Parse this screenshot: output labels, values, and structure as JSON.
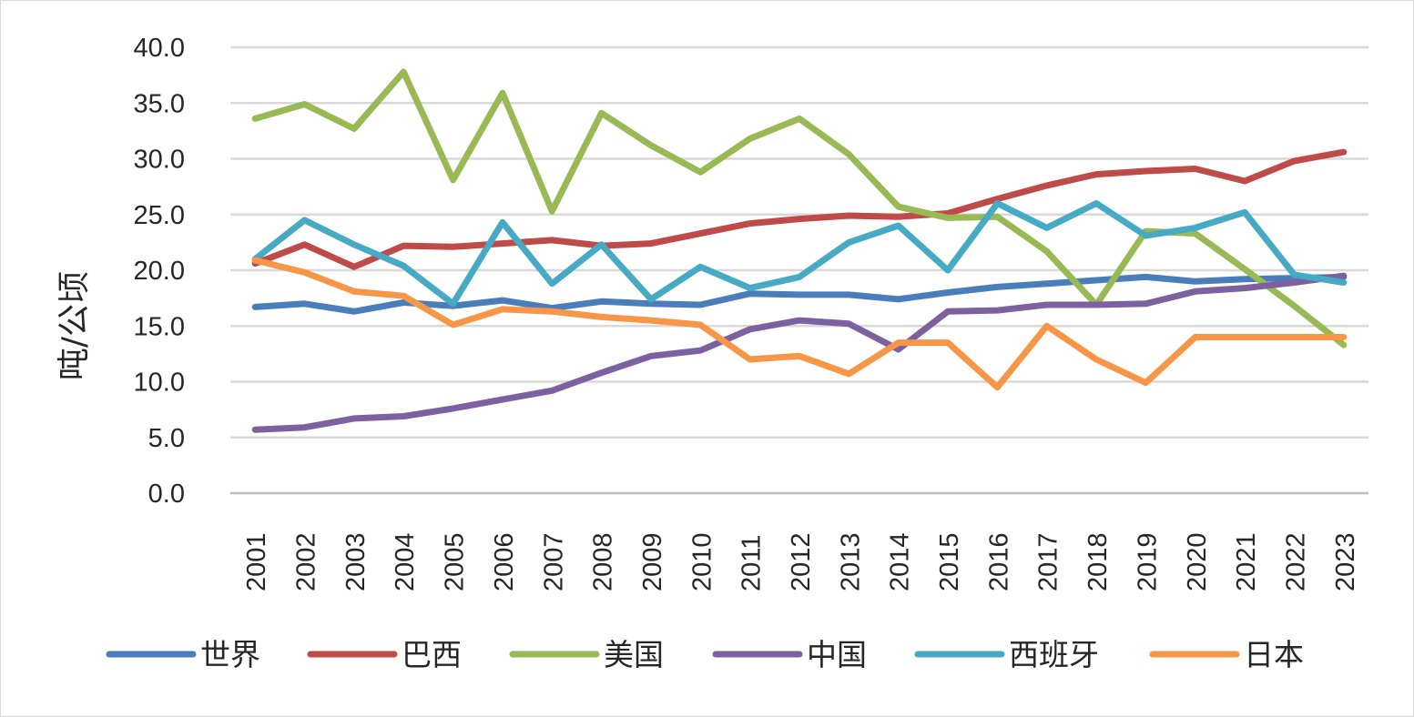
{
  "chart_data": {
    "type": "line",
    "title": "",
    "xlabel": "",
    "ylabel": "吨/公顷",
    "ylim": [
      0,
      40
    ],
    "ytick_labels": [
      "0.0",
      "5.0",
      "10.0",
      "15.0",
      "20.0",
      "25.0",
      "30.0",
      "35.0",
      "40.0"
    ],
    "grid": true,
    "legend_position": "bottom",
    "categories": [
      "2001",
      "2002",
      "2003",
      "2004",
      "2005",
      "2006",
      "2007",
      "2008",
      "2009",
      "2010",
      "2011",
      "2012",
      "2013",
      "2014",
      "2015",
      "2016",
      "2017",
      "2018",
      "2019",
      "2020",
      "2021",
      "2022",
      "2023"
    ],
    "series": [
      {
        "name": "世界",
        "color": "#4A7EBB",
        "values": [
          16.7,
          17.0,
          16.3,
          17.1,
          16.8,
          17.3,
          16.6,
          17.2,
          17.0,
          16.9,
          17.9,
          17.8,
          17.8,
          17.4,
          18.0,
          18.5,
          18.8,
          19.1,
          19.4,
          19.0,
          19.2,
          19.3,
          19.4
        ]
      },
      {
        "name": "巴西",
        "color": "#BE4B48",
        "values": [
          20.6,
          22.3,
          20.3,
          22.2,
          22.1,
          22.4,
          22.7,
          22.2,
          22.4,
          23.3,
          24.2,
          24.6,
          24.9,
          24.8,
          25.1,
          26.4,
          27.6,
          28.6,
          28.9,
          29.1,
          28.0,
          29.8,
          30.6
        ]
      },
      {
        "name": "美国",
        "color": "#98B954",
        "values": [
          33.6,
          34.9,
          32.7,
          37.8,
          28.1,
          35.9,
          25.3,
          34.1,
          31.2,
          28.8,
          31.8,
          33.6,
          30.4,
          25.7,
          24.7,
          24.8,
          21.7,
          16.9,
          23.5,
          23.3,
          20.1,
          16.8,
          13.3
        ]
      },
      {
        "name": "中国",
        "color": "#7D60A0",
        "values": [
          5.7,
          5.9,
          6.7,
          6.9,
          7.6,
          8.4,
          9.2,
          10.8,
          12.3,
          12.8,
          14.7,
          15.5,
          15.2,
          12.9,
          16.3,
          16.4,
          16.9,
          16.9,
          17.0,
          18.1,
          18.4,
          18.9,
          19.5
        ]
      },
      {
        "name": "西班牙",
        "color": "#46AAC5",
        "values": [
          21.0,
          24.5,
          22.3,
          20.4,
          17.0,
          24.3,
          18.8,
          22.3,
          17.4,
          20.3,
          18.4,
          19.4,
          22.5,
          24.0,
          20.0,
          26.0,
          23.8,
          26.0,
          23.1,
          23.8,
          25.2,
          19.6,
          18.9
        ]
      },
      {
        "name": "日本",
        "color": "#F79646",
        "values": [
          20.9,
          19.8,
          18.1,
          17.7,
          15.1,
          16.5,
          16.3,
          15.8,
          15.5,
          15.1,
          12.0,
          12.3,
          10.7,
          13.5,
          13.5,
          9.5,
          15.0,
          12.0,
          9.9,
          14.0,
          14.0,
          14.0,
          14.0
        ]
      }
    ]
  }
}
